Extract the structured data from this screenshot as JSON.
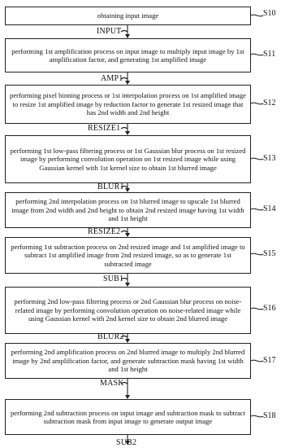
{
  "steps": [
    {
      "id": "S10",
      "text": "obtaining input image",
      "output": "INPUT"
    },
    {
      "id": "S11",
      "text": "performing 1st amplification process on input image to multiply input image by 1st amplification factor, and generating 1st amplified image",
      "output": "AMP1"
    },
    {
      "id": "S12",
      "text": "performing pixel binning process or 1st interpolation process on 1st amplified image to resize 1st amplified image by reduction factor to generate 1st resized image that has 2nd width and 2nd height",
      "output": "RESIZE1"
    },
    {
      "id": "S13",
      "text": "performing 1st low-pass filtering process or 1st Gaussian blur process on 1st resized image by performing convolution operation on 1st resized image while using Gaussian kernel with 1st kernel size to obtain 1st blurred image",
      "output": "BLUR1"
    },
    {
      "id": "S14",
      "text": "performing 2nd interpolation process on 1st blurred image to upscale 1st blurred image from 2nd width and 2nd height to obtain 2nd resized image having 1st width and 1st height",
      "output": "RESIZE2"
    },
    {
      "id": "S15",
      "text": "performing 1st subtraction process on 2nd resized image and 1st amplified image to subtract 1st amplified image from 2nd resized image, so as to generate 1st subtracted image",
      "output": "SUB1"
    },
    {
      "id": "S16",
      "text": "performing 2nd low-pass filtering process or 2nd Gaussian blur process on noise-related image by performing convolution operation on noise-related image while using Gaussian kernel with 2nd kernel size to obtain 2nd blurred image",
      "output": "BLUR2"
    },
    {
      "id": "S17",
      "text": "performing 2nd amplification process on 2nd blurred image to multiply 2nd blurred image by 2nd amplification factor, and generate subtraction mask having 1st width and 1st height",
      "output": "MASK"
    },
    {
      "id": "S18",
      "text": "performing 2nd subtraction process on input image and subtraction mask to subtract subtraction mask from input image to generate output image",
      "output": "SUB2"
    }
  ]
}
